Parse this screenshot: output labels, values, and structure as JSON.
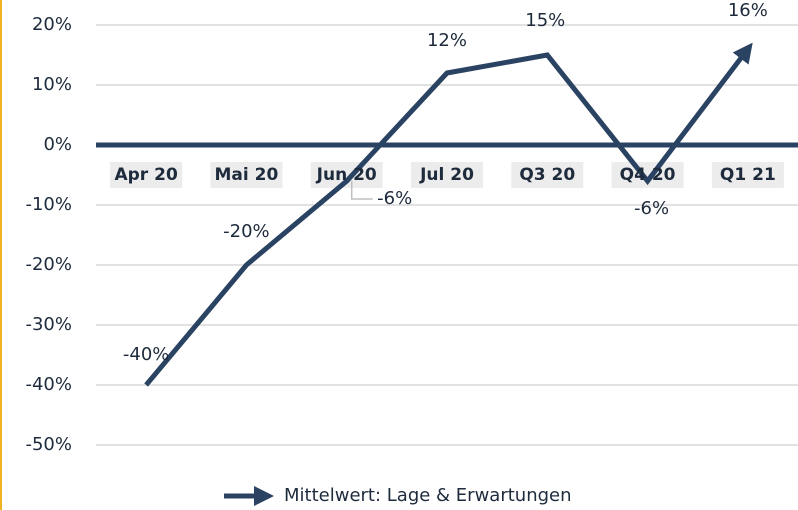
{
  "chart_data": {
    "type": "line",
    "categories": [
      "Apr 20",
      "Mai 20",
      "Jun 20",
      "Jul 20",
      "Q3 20",
      "Q4 20",
      "Q1 21"
    ],
    "series": [
      {
        "name": "Mittelwert: Lage & Erwartungen",
        "color": "#2b4363",
        "values": [
          -40,
          -20,
          -6,
          12,
          15,
          -6,
          16
        ],
        "value_labels": [
          "-40%",
          "-20%",
          "-6%",
          "12%",
          "15%",
          "-6%",
          "16%"
        ]
      }
    ],
    "ylim": [
      -50,
      20
    ],
    "yticks": [
      {
        "value": 20,
        "label": "20%"
      },
      {
        "value": 10,
        "label": "10%"
      },
      {
        "value": 0,
        "label": "0%"
      },
      {
        "value": -10,
        "label": "-10%"
      },
      {
        "value": -20,
        "label": "-20%"
      },
      {
        "value": -30,
        "label": "-30%"
      },
      {
        "value": -40,
        "label": "-40%"
      },
      {
        "value": -50,
        "label": "-50%"
      }
    ],
    "grid": true,
    "legend": "bottom"
  }
}
